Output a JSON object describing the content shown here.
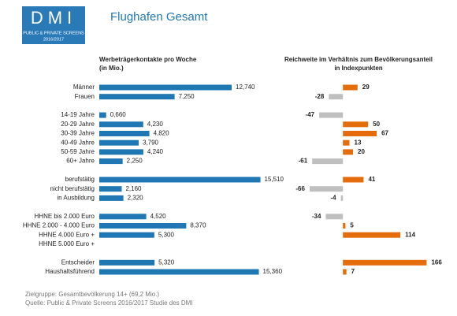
{
  "header": {
    "logo": "DMI",
    "logo_line1": "PUBLIC & PRIVATE SCREENS",
    "logo_line2": "2016/2017",
    "title": "Flughafen Gesamt"
  },
  "chart_data": [
    {
      "type": "hbar",
      "title": "Werbeträgerkontakte pro Woche",
      "subtitle": "(in Mio.)",
      "color": "#1f78b4",
      "xlim": [
        0,
        16
      ],
      "categories": [
        "Männer",
        "Frauen",
        "14-19 Jahre",
        "20-29 Jahre",
        "30-39 Jahre",
        "40-49 Jahre",
        "50-59 Jahre",
        "60+ Jahre",
        "berufstätig",
        "nicht berufstätig",
        "in Ausbildung",
        "HHNE bis 2.000 Euro",
        "HHNE 2.000 - 4.000 Euro",
        "HHNE 4.000 Euro +",
        "HHNE 5.000 Euro +",
        "Entscheider",
        "Haushaltsführend"
      ],
      "values": [
        12.74,
        7.25,
        0.66,
        4.23,
        4.82,
        3.79,
        4.24,
        2.25,
        15.51,
        2.16,
        2.32,
        4.52,
        8.37,
        5.3,
        null,
        5.32,
        15.36
      ],
      "value_labels": [
        "12,740",
        "7,250",
        "0,660",
        "4,230",
        "4,820",
        "3,790",
        "4,240",
        "2,250",
        "15,510",
        "2,160",
        "2,320",
        "4,520",
        "8,370",
        "5,300",
        null,
        "5,320",
        "15,360"
      ]
    },
    {
      "type": "diverging",
      "title": "Reichweite im Verhältnis zum Bevölkerungsanteil",
      "subtitle": "in Indexpunkten",
      "positive_color": "#e46c0a",
      "negative_color": "#bfbfbf",
      "xlim": [
        -80,
        180
      ],
      "values": [
        29,
        -28,
        -47,
        50,
        67,
        13,
        20,
        -61,
        41,
        -66,
        -4,
        -34,
        5,
        114,
        null,
        166,
        7
      ]
    }
  ],
  "footer": [
    "Zielgruppe: Gesamtbevölkerung 14+ (69,2 Mio.)",
    "Quelle: Public & Private Screens 2016/2017 Studie des DMI"
  ]
}
